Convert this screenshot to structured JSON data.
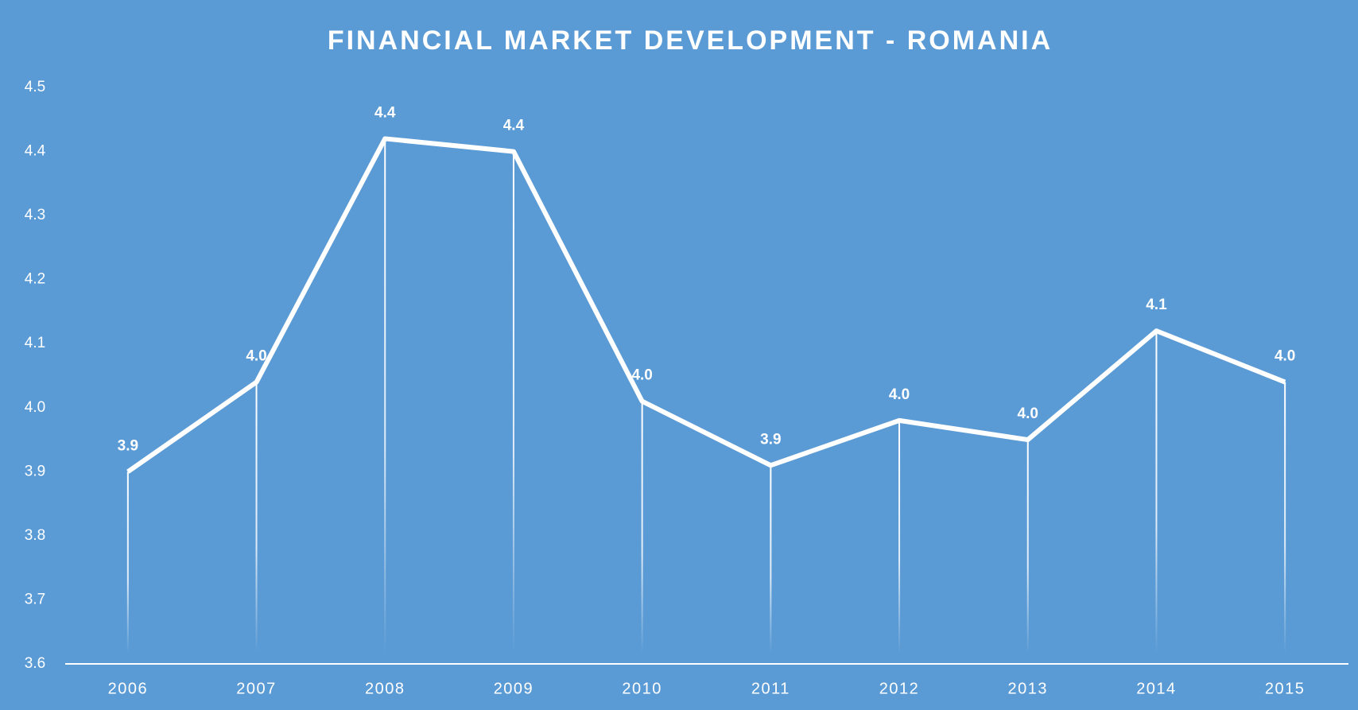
{
  "chart_data": {
    "type": "line",
    "title": "FINANCIAL MARKET DEVELOPMENT - ROMANIA",
    "categories": [
      "2006",
      "2007",
      "2008",
      "2009",
      "2010",
      "2011",
      "2012",
      "2013",
      "2014",
      "2015"
    ],
    "values": [
      3.9,
      4.04,
      4.42,
      4.4,
      4.01,
      3.91,
      3.98,
      3.95,
      4.12,
      4.04
    ],
    "value_labels": [
      "3.9",
      "4.0",
      "4.4",
      "4.4",
      "4.0",
      "3.9",
      "4.0",
      "4.0",
      "4.1",
      "4.0"
    ],
    "color": "#ffffff",
    "ylim": [
      3.6,
      4.5
    ],
    "yticks": [
      3.6,
      3.7,
      3.8,
      3.9,
      {
        "value": 4,
        "label": "4.0"
      },
      4.1,
      4.2,
      4.3,
      4.4,
      4.5
    ],
    "grid": false
  }
}
